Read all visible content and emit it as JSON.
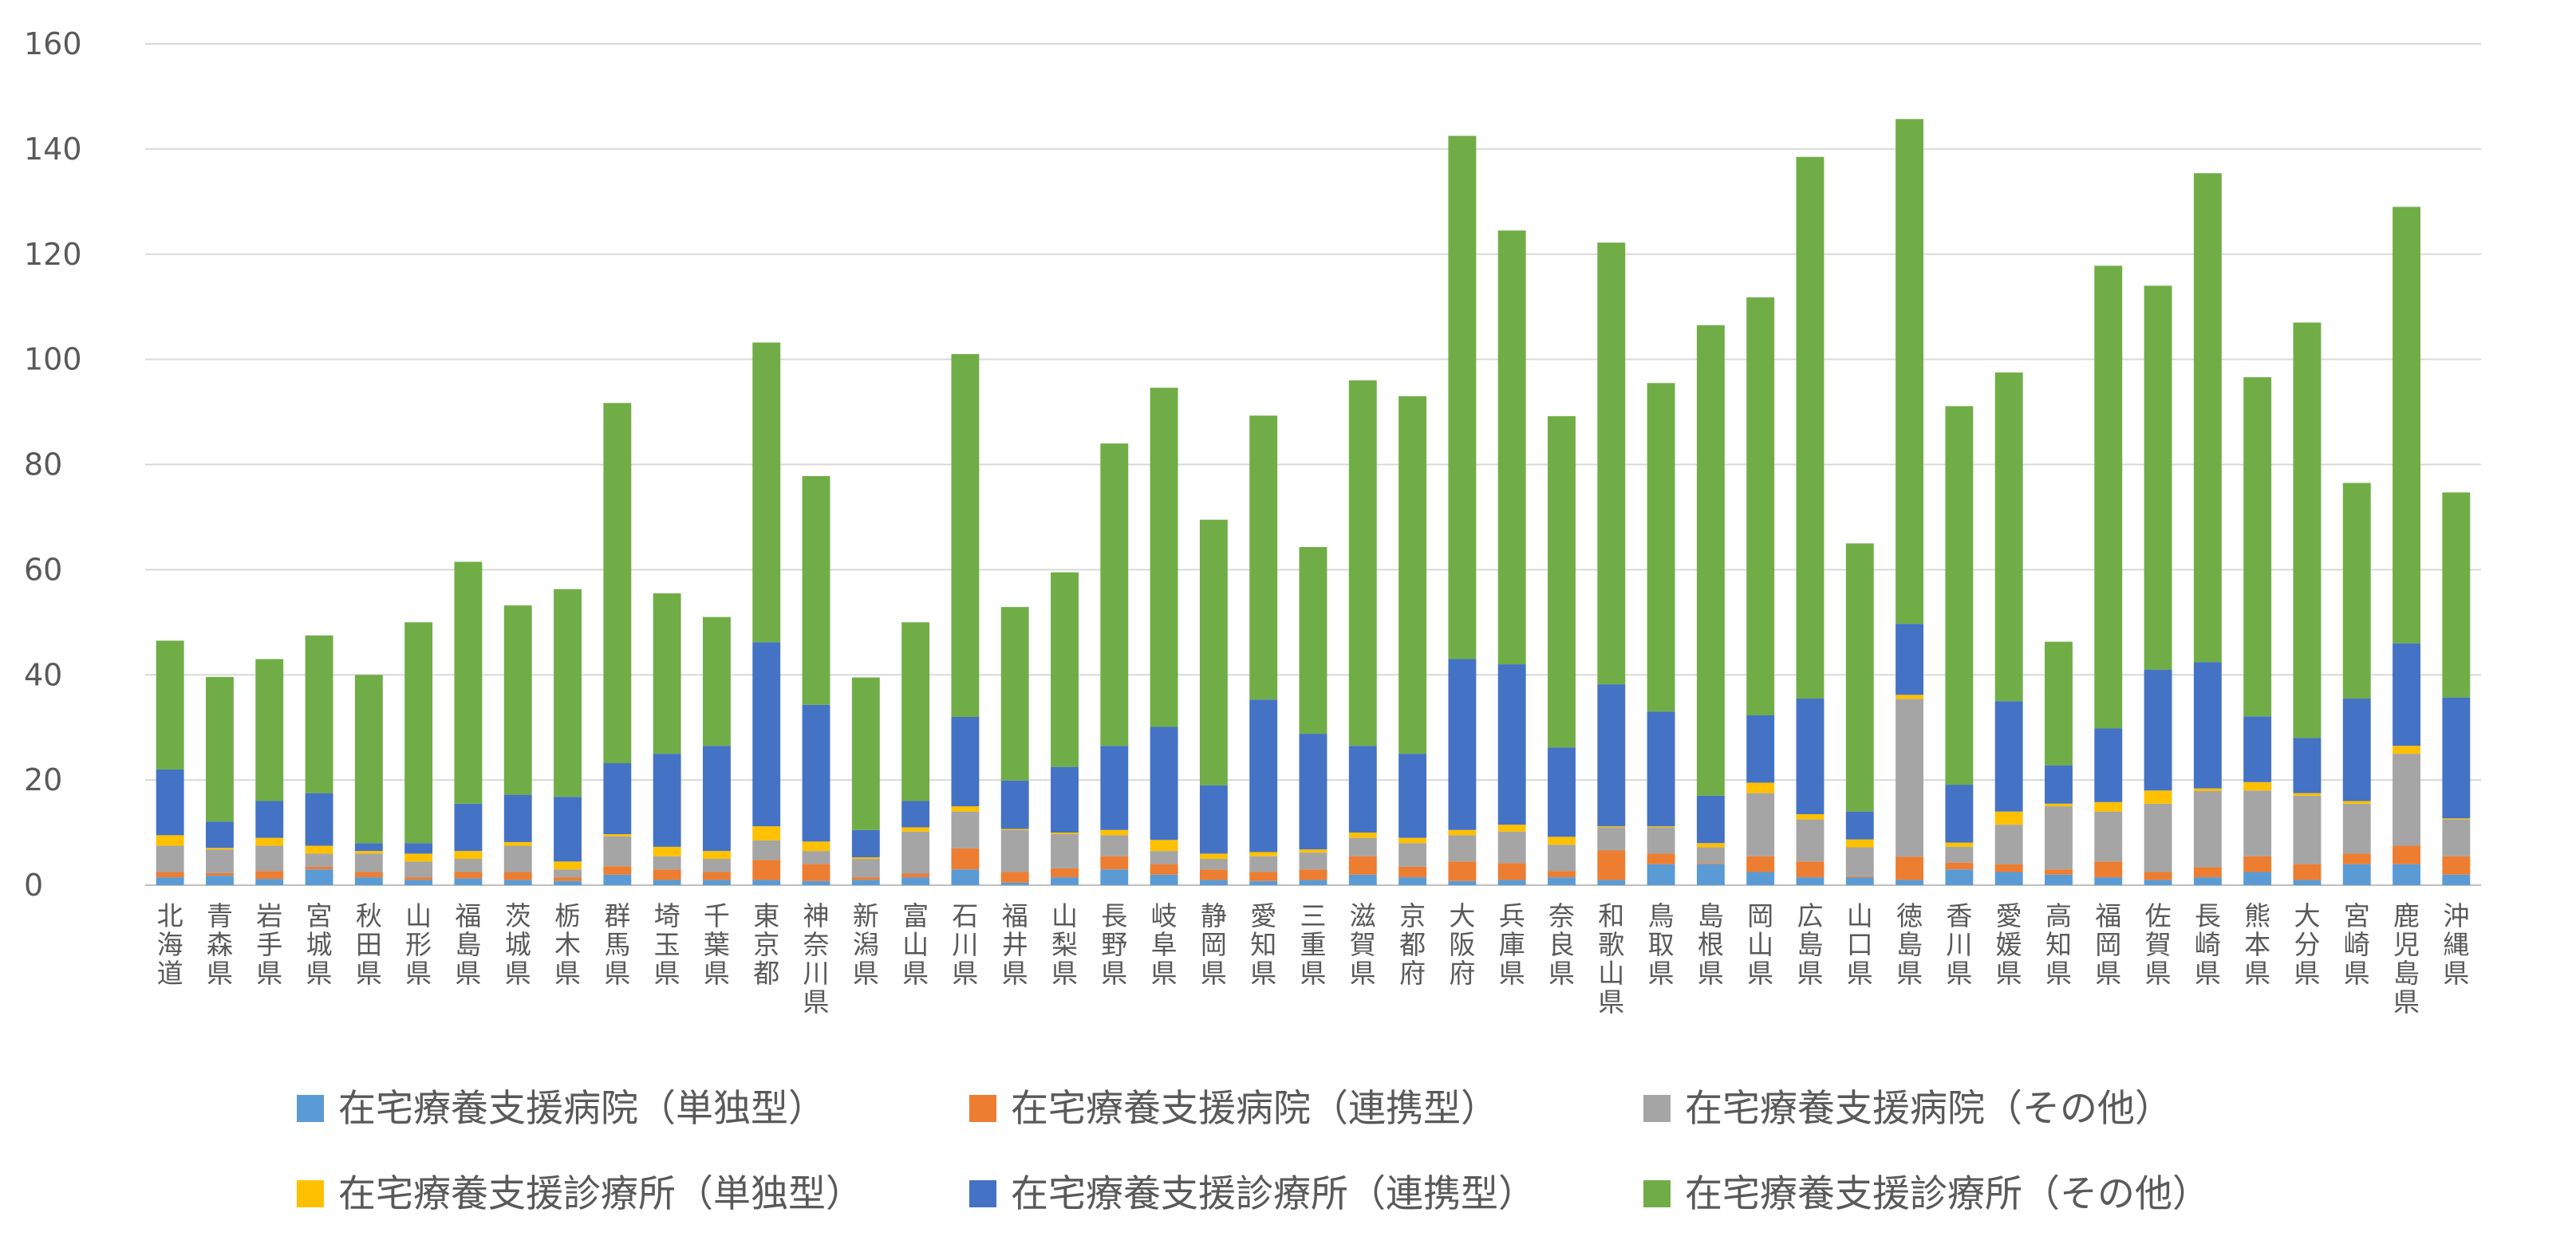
{
  "chart_data": {
    "type": "bar",
    "stacked": true,
    "ylim": [
      0,
      160
    ],
    "yticks": [
      0,
      20,
      40,
      60,
      80,
      100,
      120,
      140,
      160
    ],
    "grid": true,
    "legend_position": "bottom",
    "categories": [
      "北海道",
      "青森県",
      "岩手県",
      "宮城県",
      "秋田県",
      "山形県",
      "福島県",
      "茨城県",
      "栃木県",
      "群馬県",
      "埼玉県",
      "千葉県",
      "東京都",
      "神奈川県",
      "新潟県",
      "富山県",
      "石川県",
      "福井県",
      "山梨県",
      "長野県",
      "岐阜県",
      "静岡県",
      "愛知県",
      "三重県",
      "滋賀県",
      "京都府",
      "大阪府",
      "兵庫県",
      "奈良県",
      "和歌山県",
      "鳥取県",
      "島根県",
      "岡山県",
      "広島県",
      "山口県",
      "徳島県",
      "香川県",
      "愛媛県",
      "高知県",
      "福岡県",
      "佐賀県",
      "長崎県",
      "熊本県",
      "大分県",
      "宮崎県",
      "鹿児島県",
      "沖縄県"
    ],
    "series": [
      {
        "name": "在宅療養支援病院（単独型）",
        "color": "#5B9BD5",
        "values": [
          1.5,
          1.8,
          1.2,
          3.0,
          1.5,
          1.0,
          1.3,
          1.0,
          0.8,
          2.0,
          1.0,
          1.0,
          1.0,
          0.8,
          1.0,
          1.5,
          3.0,
          0.5,
          1.5,
          3.0,
          2.0,
          1.0,
          0.8,
          1.0,
          2.0,
          1.5,
          0.8,
          1.0,
          1.5,
          1.0,
          4.0,
          4.0,
          2.5,
          1.5,
          1.5,
          1.0,
          3.0,
          2.5,
          2.0,
          1.5,
          1.0,
          1.5,
          2.5,
          1.0,
          4.0,
          4.0,
          2.0
        ]
      },
      {
        "name": "在宅療養支援病院（連携型）",
        "color": "#ED7D31",
        "values": [
          1.0,
          0.5,
          1.5,
          0.5,
          1.0,
          0.5,
          1.2,
          1.5,
          0.7,
          1.6,
          2.0,
          1.5,
          3.8,
          3.2,
          0.5,
          0.7,
          4.0,
          2.0,
          1.7,
          2.5,
          2.0,
          2.0,
          1.7,
          2.0,
          3.5,
          2.0,
          3.7,
          3.2,
          1.2,
          5.6,
          2.0,
          0.2,
          3.0,
          3.0,
          0.2,
          4.4,
          1.3,
          1.5,
          1.0,
          3.0,
          1.5,
          1.9,
          3.0,
          3.0,
          2.0,
          3.5,
          3.5
        ]
      },
      {
        "name": "在宅療養支援病院（その他）",
        "color": "#A5A5A5",
        "values": [
          5.0,
          4.5,
          4.8,
          2.5,
          3.5,
          3.0,
          2.5,
          5.0,
          1.5,
          5.7,
          2.5,
          2.5,
          3.7,
          2.5,
          3.5,
          8.0,
          7.0,
          8.0,
          6.5,
          4.0,
          2.5,
          2.0,
          3.0,
          3.2,
          3.5,
          4.5,
          5.0,
          6.0,
          5.0,
          4.4,
          5.0,
          3.0,
          12.0,
          8.0,
          5.5,
          30.0,
          3.0,
          7.5,
          12.0,
          9.5,
          13.0,
          14.5,
          12.5,
          13.0,
          9.5,
          17.5,
          7.0
        ]
      },
      {
        "name": "在宅療養支援診療所（単独型）",
        "color": "#FFC000",
        "values": [
          2.0,
          0.3,
          1.5,
          1.5,
          0.5,
          1.5,
          1.5,
          0.7,
          1.5,
          0.4,
          1.8,
          1.5,
          2.7,
          1.8,
          0.3,
          0.8,
          1.0,
          0.2,
          0.3,
          1.0,
          2.1,
          1.0,
          0.8,
          0.6,
          1.0,
          1.0,
          1.0,
          1.3,
          1.5,
          0.2,
          0.2,
          0.8,
          2.0,
          1.0,
          1.5,
          0.8,
          0.8,
          2.5,
          0.5,
          1.8,
          2.5,
          0.5,
          1.6,
          0.5,
          0.5,
          1.5,
          0.2
        ]
      },
      {
        "name": "在宅療養支援診療所（連携型）",
        "color": "#4472C4",
        "values": [
          12.5,
          5.0,
          7.0,
          10.0,
          1.5,
          2.0,
          9.0,
          9.0,
          12.3,
          13.5,
          17.7,
          20.0,
          35.0,
          26.0,
          5.2,
          5.0,
          17.0,
          9.2,
          12.5,
          16.0,
          21.5,
          13.0,
          29.0,
          22.0,
          16.5,
          16.0,
          32.5,
          30.5,
          17.0,
          27.0,
          21.8,
          9.0,
          12.8,
          22.0,
          5.3,
          13.5,
          11.0,
          21.0,
          7.3,
          14.0,
          23.0,
          24.0,
          12.5,
          10.5,
          19.5,
          19.5,
          23.0
        ]
      },
      {
        "name": "在宅療養支援診療所（その他）",
        "color": "#70AD47",
        "values": [
          24.5,
          27.5,
          27.0,
          30.0,
          32.0,
          42.0,
          46.0,
          36.0,
          39.5,
          68.5,
          30.5,
          24.5,
          57.0,
          43.5,
          29.0,
          34.0,
          69.0,
          33.0,
          37.0,
          57.5,
          64.5,
          50.5,
          54.0,
          35.5,
          69.5,
          68.0,
          99.5,
          82.5,
          63.0,
          84.0,
          62.5,
          89.5,
          79.5,
          103.0,
          51.0,
          96.0,
          72.0,
          62.5,
          23.5,
          88.0,
          73.0,
          93.0,
          64.5,
          79.0,
          41.0,
          83.0,
          39.0
        ]
      }
    ]
  }
}
